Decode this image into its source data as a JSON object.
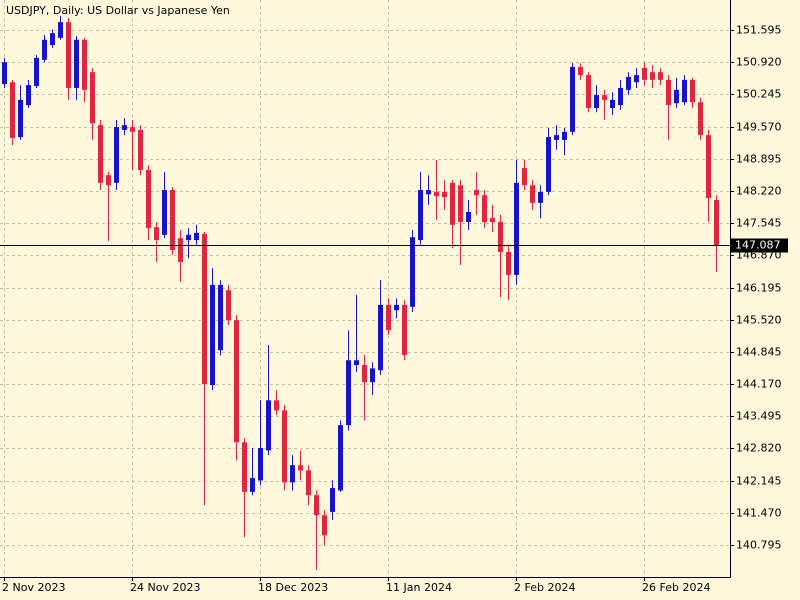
{
  "chart_data": {
    "type": "candlestick",
    "title": "USDJPY, Daily:  US Dollar vs Japanese Yen",
    "categories": [
      "2 Nov 2023",
      null,
      null,
      null,
      null,
      null,
      null,
      null,
      null,
      null,
      null,
      null,
      null,
      null,
      null,
      null,
      "24 Nov 2023",
      null,
      null,
      null,
      null,
      null,
      null,
      null,
      null,
      null,
      null,
      null,
      null,
      null,
      null,
      null,
      "18 Dec 2023",
      null,
      null,
      null,
      null,
      null,
      null,
      null,
      null,
      null,
      null,
      null,
      null,
      null,
      null,
      null,
      "11 Jan 2024",
      null,
      null,
      null,
      null,
      null,
      null,
      null,
      null,
      null,
      null,
      null,
      null,
      null,
      null,
      null,
      "2 Feb 2024",
      null,
      null,
      null,
      null,
      null,
      null,
      null,
      null,
      null,
      null,
      null,
      null,
      null,
      null,
      null,
      "26 Feb 2024",
      null,
      null,
      null,
      null,
      null,
      null,
      null,
      null,
      null
    ],
    "open": [
      150.46,
      150.5,
      149.35,
      150.02,
      150.42,
      150.97,
      151.28,
      151.43,
      151.76,
      150.38,
      151.39,
      150.71,
      149.6,
      148.55,
      148.39,
      149.5,
      149.56,
      149.5,
      148.66,
      147.46,
      147.3,
      148.24,
      147.23,
      147.19,
      147.19,
      147.32,
      144.15,
      144.88,
      146.14,
      145.51,
      142.95,
      141.91,
      142.15,
      142.78,
      143.83,
      143.62,
      142.11,
      142.47,
      142.36,
      141.84,
      141.42,
      141.49,
      141.94,
      143.31,
      144.57,
      144.57,
      144.21,
      144.46,
      145.83,
      145.72,
      145.83,
      145.79,
      147.19,
      148.15,
      148.2,
      148.2,
      148.39,
      148.34,
      147.57,
      148.24,
      148.13,
      147.65,
      147.57,
      146.94,
      146.46,
      148.7,
      148.34,
      147.97,
      148.2,
      149.29,
      149.29,
      149.46,
      150.82,
      150.65,
      149.96,
      150.23,
      149.96,
      150.02,
      150.34,
      150.5,
      150.8,
      150.71,
      150.71,
      150.55,
      150.06,
      150.08,
      150.55,
      150.08,
      149.39,
      148.03
    ],
    "high": [
      151.01,
      150.55,
      150.44,
      150.55,
      151.07,
      151.49,
      151.6,
      151.89,
      151.85,
      151.47,
      151.43,
      150.8,
      149.71,
      148.62,
      149.71,
      149.75,
      149.71,
      149.6,
      148.76,
      147.57,
      148.62,
      148.3,
      147.4,
      147.44,
      147.51,
      147.36,
      146.6,
      146.35,
      146.25,
      145.62,
      143.04,
      142.83,
      143.83,
      144.99,
      144.04,
      143.73,
      142.68,
      142.78,
      142.47,
      141.94,
      141.53,
      142.15,
      143.41,
      145.3,
      146.04,
      144.78,
      144.63,
      146.35,
      145.97,
      145.97,
      145.93,
      147.4,
      148.62,
      148.55,
      148.87,
      148.45,
      148.45,
      148.45,
      148.03,
      148.62,
      148.24,
      147.93,
      147.72,
      147.09,
      148.87,
      148.87,
      148.45,
      148.34,
      149.54,
      149.6,
      149.54,
      150.9,
      150.9,
      150.71,
      150.44,
      150.34,
      150.29,
      150.55,
      150.71,
      150.8,
      150.92,
      150.86,
      150.8,
      150.65,
      150.59,
      150.65,
      150.59,
      150.17,
      149.5,
      148.13
    ],
    "low": [
      150.38,
      149.18,
      149.29,
      149.96,
      150.38,
      150.92,
      151.22,
      151.39,
      150.13,
      150.13,
      150.08,
      149.29,
      148.24,
      147.17,
      148.24,
      149.39,
      148.66,
      148.55,
      147.19,
      146.73,
      147.23,
      146.88,
      146.31,
      146.81,
      147.09,
      141.63,
      144.04,
      144.77,
      145.41,
      142.57,
      140.96,
      141.84,
      142.05,
      142.68,
      143.52,
      141.94,
      141.94,
      142.15,
      141.63,
      140.27,
      140.79,
      141.32,
      141.91,
      143.2,
      144.42,
      143.41,
      143.94,
      144.36,
      145.2,
      145.55,
      144.67,
      145.68,
      147.09,
      147.93,
      147.61,
      147.82,
      147.02,
      146.67,
      147.4,
      147.72,
      147.44,
      147.36,
      145.99,
      145.93,
      146.25,
      148.24,
      147.82,
      147.65,
      148.13,
      149.08,
      148.97,
      149.39,
      150.55,
      149.87,
      149.87,
      149.71,
      149.81,
      149.92,
      150.23,
      150.38,
      150.44,
      150.38,
      150.44,
      149.29,
      149.96,
      150.02,
      149.96,
      149.29,
      147.57,
      146.52
    ],
    "close": [
      150.92,
      149.33,
      150.13,
      150.44,
      151.01,
      151.39,
      151.53,
      151.76,
      150.38,
      151.39,
      150.34,
      149.64,
      148.39,
      148.34,
      149.56,
      149.6,
      149.46,
      148.66,
      147.44,
      147.19,
      148.24,
      146.98,
      146.73,
      147.3,
      147.34,
      144.17,
      146.25,
      146.25,
      145.51,
      142.95,
      141.91,
      142.2,
      142.83,
      143.83,
      143.62,
      142.11,
      142.47,
      142.36,
      141.84,
      141.42,
      141.0,
      141.99,
      143.31,
      144.67,
      144.67,
      144.21,
      144.5,
      145.83,
      145.3,
      145.83,
      144.78,
      147.25,
      148.24,
      148.24,
      148.11,
      148.09,
      147.51,
      147.57,
      147.78,
      148.13,
      147.57,
      147.57,
      146.94,
      146.46,
      148.39,
      148.34,
      147.97,
      148.2,
      149.35,
      149.39,
      149.46,
      150.82,
      150.65,
      149.96,
      150.23,
      150.13,
      150.13,
      150.38,
      150.61,
      150.65,
      150.55,
      150.55,
      150.55,
      150.02,
      150.34,
      150.55,
      150.08,
      149.39,
      148.07,
      147.087
    ],
    "up_color": "#1515c8",
    "down_color": "#dc2840",
    "last_price": 147.087,
    "ylim": [
      140.125,
      152.224
    ],
    "yticks": [
      151.595,
      {
        "value": 150.92,
        "label": "150.920"
      },
      150.245,
      {
        "value": 149.57,
        "label": "149.570"
      },
      148.895,
      {
        "value": 148.22,
        "label": "148.220"
      },
      147.545,
      {
        "value": 146.87,
        "label": "146.870"
      },
      146.195,
      {
        "value": 145.52,
        "label": "145.520"
      },
      144.845,
      {
        "value": 144.17,
        "label": "144.170"
      },
      143.495,
      {
        "value": 142.82,
        "label": "142.820"
      },
      142.145,
      {
        "value": 141.47,
        "label": "141.470"
      },
      140.795
    ],
    "grid": true
  }
}
